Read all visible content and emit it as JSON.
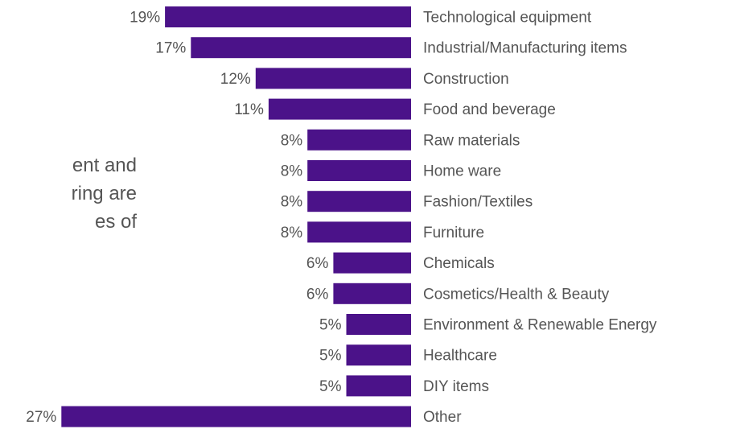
{
  "side_text": {
    "lines": [
      "ent and",
      "ring are",
      "es of"
    ]
  },
  "chart_data": {
    "type": "bar",
    "orientation": "horizontal",
    "categories": [
      "Technological equipment",
      "Industrial/Manufacturing items",
      "Construction",
      "Food and beverage",
      "Raw materials",
      "Home ware",
      "Fashion/Textiles",
      "Furniture",
      "Chemicals",
      "Cosmetics/Health & Beauty",
      "Environment & Renewable Energy",
      "Healthcare",
      "DIY items",
      "Other"
    ],
    "values": [
      19,
      17,
      12,
      11,
      8,
      8,
      8,
      8,
      6,
      6,
      5,
      5,
      5,
      27
    ],
    "value_labels": [
      "19%",
      "17%",
      "12%",
      "11%",
      "8%",
      "8%",
      "8%",
      "8%",
      "6%",
      "6%",
      "5%",
      "5%",
      "5%",
      "27%"
    ],
    "unit": "%",
    "bar_color": "#4b1289",
    "text_color": "#555555",
    "bars_extend": "leftward from shared baseline",
    "grid": false,
    "legend": "none"
  }
}
